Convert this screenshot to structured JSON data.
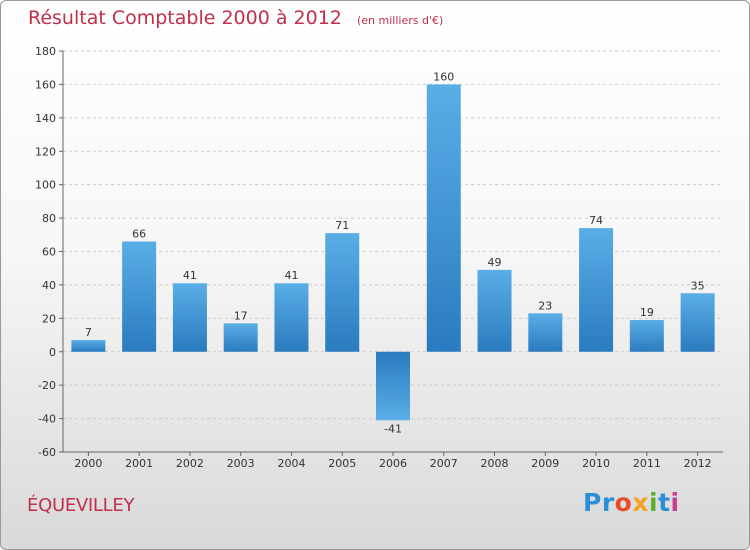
{
  "chart_data": {
    "type": "bar",
    "title": "Résultat Comptable 2000 à 2012",
    "subtitle": "(en milliers d'€)",
    "categories": [
      "2000",
      "2001",
      "2002",
      "2003",
      "2004",
      "2005",
      "2006",
      "2007",
      "2008",
      "2009",
      "2010",
      "2011",
      "2012"
    ],
    "values": [
      7,
      66,
      41,
      17,
      41,
      71,
      -41,
      160,
      49,
      23,
      74,
      19,
      35
    ],
    "value_labels": [
      "7",
      "66",
      "41",
      "17",
      "41",
      "71",
      "-41",
      "160",
      "49",
      "23",
      "74",
      "19",
      "35"
    ],
    "ylim": [
      -60,
      180
    ],
    "yticks": [
      -60,
      -40,
      -20,
      0,
      20,
      40,
      60,
      80,
      100,
      120,
      140,
      160,
      180
    ],
    "grid": true,
    "bar_color": "#3a93d8",
    "bar_color_light": "#5aaee6",
    "bar_color_dark": "#2a7bbf"
  },
  "footer": {
    "commune": "ÉQUEVILLEY",
    "brand_letters": [
      "Pr",
      "o",
      "x",
      "i",
      "t",
      "i"
    ]
  },
  "colors": {
    "title": "#c0304a",
    "grid": "#cccccc"
  }
}
